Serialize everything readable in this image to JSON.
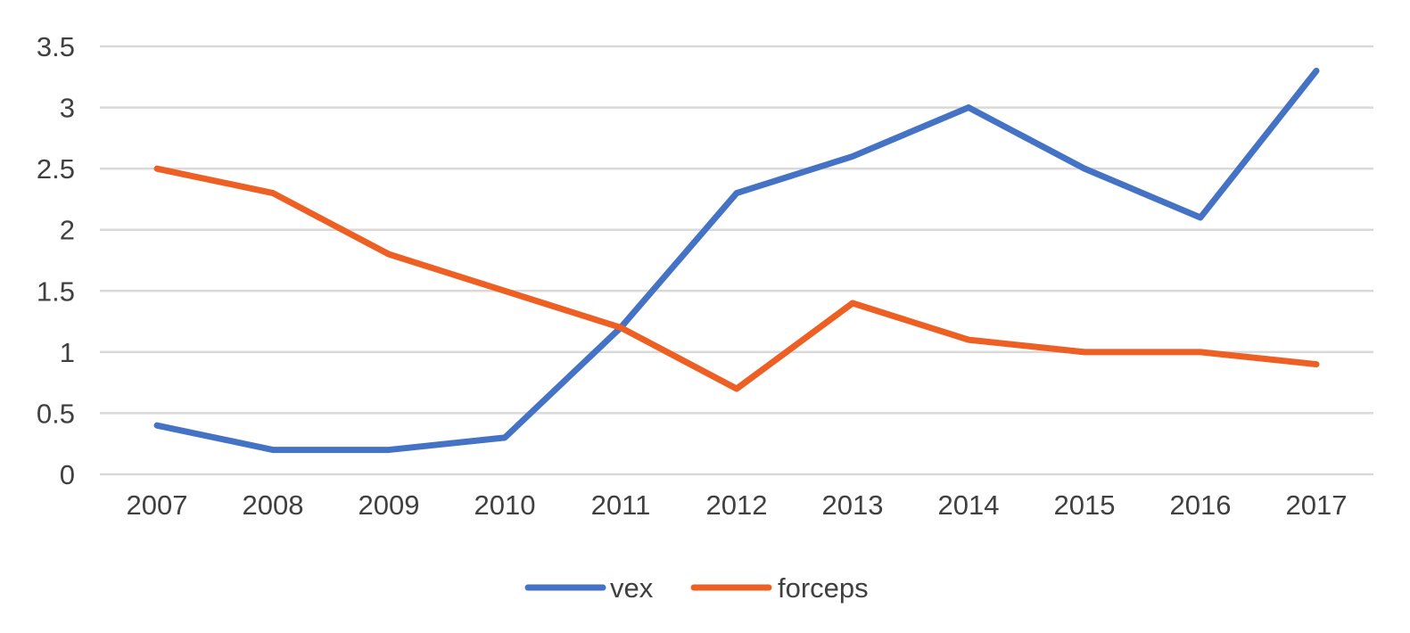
{
  "chart_data": {
    "type": "line",
    "title": "",
    "xlabel": "",
    "ylabel": "",
    "categories": [
      "2007",
      "2008",
      "2009",
      "2010",
      "2011",
      "2012",
      "2013",
      "2014",
      "2015",
      "2016",
      "2017"
    ],
    "series": [
      {
        "name": "vex",
        "color": "#4472C4",
        "values": [
          0.4,
          0.2,
          0.2,
          0.3,
          1.2,
          2.3,
          2.6,
          3.0,
          2.5,
          2.1,
          3.3
        ]
      },
      {
        "name": "forceps",
        "color": "#ED5F22",
        "values": [
          2.5,
          2.3,
          1.8,
          1.5,
          1.2,
          0.7,
          1.4,
          1.1,
          1.0,
          1.0,
          0.9
        ]
      }
    ],
    "ylim": [
      0,
      3.5
    ],
    "yticks": [
      0,
      0.5,
      1,
      1.5,
      2,
      2.5,
      3,
      3.5
    ],
    "ytick_labels": [
      "0",
      "0.5",
      "1",
      "1.5",
      "2",
      "2.5",
      "3",
      "3.5"
    ],
    "grid": true,
    "legend": "bottom-center"
  },
  "colors": {
    "gridline": "#D9D9D9",
    "text": "#404040",
    "background": "#FFFFFF"
  }
}
